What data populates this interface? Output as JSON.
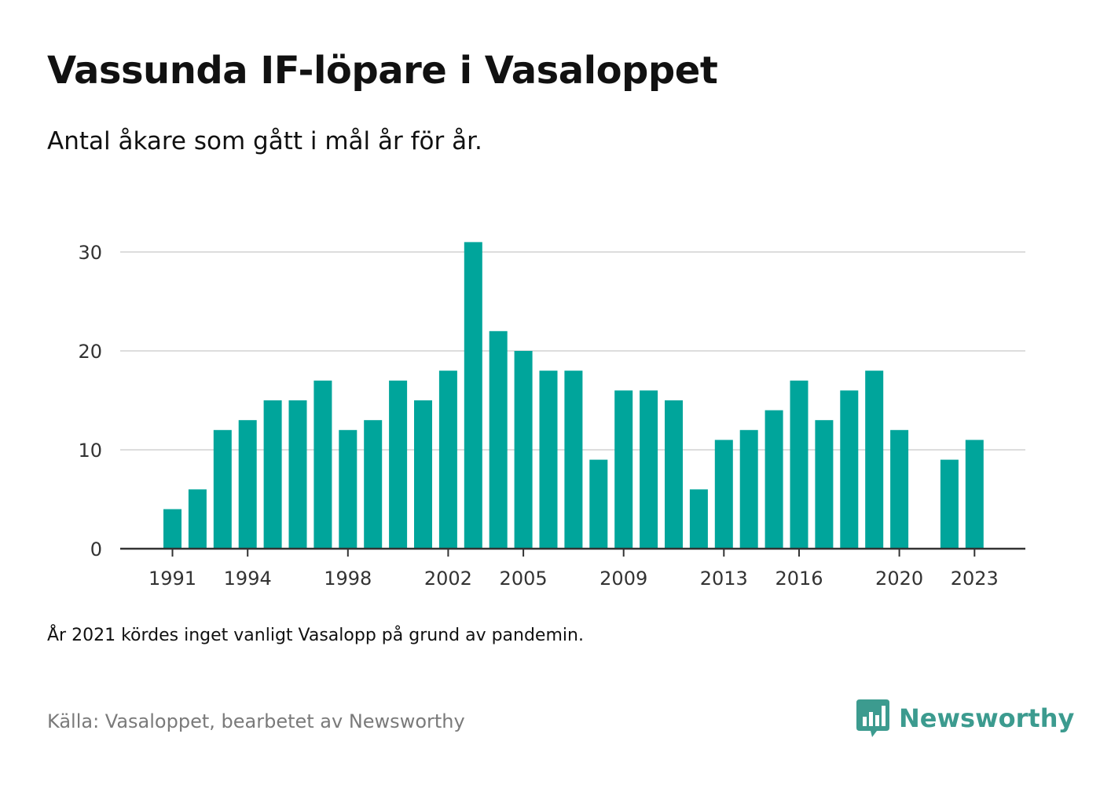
{
  "header": {
    "title": "Vassunda IF-löpare i Vasaloppet",
    "subtitle": "Antal åkare som gått i mål år för år."
  },
  "footer": {
    "note": "År 2021 kördes inget vanligt Vasalopp på grund av pandemin.",
    "source": "Källa: Vasaloppet, bearbetet av Newsworthy",
    "brand": "Newsworthy"
  },
  "colors": {
    "bar": "#00a59b",
    "grid": "#dddddd",
    "axis": "#333333",
    "brand": "#3c9b8f"
  },
  "chart_data": {
    "type": "bar",
    "title": "Vassunda IF-löpare i Vasaloppet",
    "subtitle": "Antal åkare som gått i mål år för år.",
    "xlabel": "",
    "ylabel": "",
    "ylim": [
      0,
      30
    ],
    "yticks": [
      0,
      10,
      20,
      30
    ],
    "xticks": [
      "1991",
      "1994",
      "1998",
      "2002",
      "2005",
      "2009",
      "2013",
      "2016",
      "2020",
      "2023"
    ],
    "grid": true,
    "legend": "none",
    "categories": [
      "1989",
      "1990",
      "1991",
      "1992",
      "1993",
      "1994",
      "1995",
      "1996",
      "1997",
      "1998",
      "1999",
      "2000",
      "2001",
      "2002",
      "2003",
      "2004",
      "2005",
      "2006",
      "2007",
      "2008",
      "2009",
      "2010",
      "2011",
      "2012",
      "2013",
      "2014",
      "2015",
      "2016",
      "2017",
      "2018",
      "2019",
      "2020",
      "2021",
      "2022",
      "2023",
      "2024"
    ],
    "values": [
      null,
      null,
      4,
      6,
      12,
      13,
      15,
      15,
      17,
      12,
      13,
      17,
      15,
      18,
      31,
      22,
      20,
      18,
      18,
      9,
      16,
      16,
      15,
      6,
      11,
      12,
      14,
      17,
      13,
      16,
      18,
      12,
      null,
      9,
      11,
      null
    ]
  }
}
